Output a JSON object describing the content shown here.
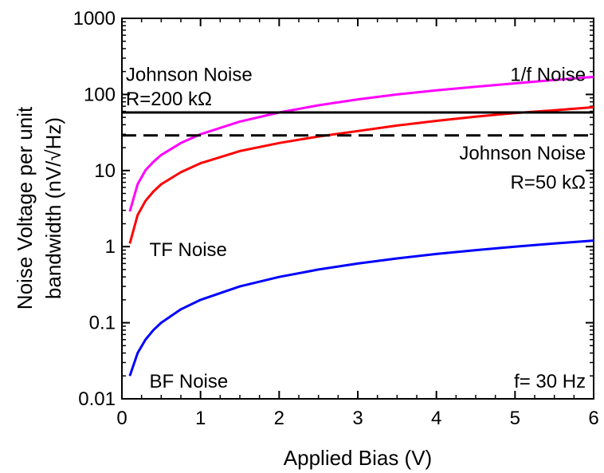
{
  "chart_data": {
    "type": "line",
    "title": "",
    "xlabel": "Applied Bias (V)",
    "ylabel_lines": [
      "Noise Voltage per unit",
      "bandwidth (nV/√Hz)"
    ],
    "xlim": [
      0,
      6
    ],
    "ylim": [
      0.01,
      1000
    ],
    "yscale": "log",
    "grid": false,
    "x_ticks": [
      0,
      1,
      2,
      3,
      4,
      5,
      6
    ],
    "x_tick_labels": [
      "0",
      "1",
      "2",
      "3",
      "4",
      "5",
      "6"
    ],
    "y_ticks": [
      0.01,
      0.1,
      1,
      10,
      100,
      1000
    ],
    "y_tick_labels": [
      "0.01",
      "0.1",
      "1",
      "10",
      "100",
      "1000"
    ],
    "series": [
      {
        "key": "one-over-f",
        "color": "#ff00ff",
        "style": "solid",
        "x": [
          0.1,
          0.2,
          0.3,
          0.4,
          0.5,
          0.75,
          1,
          1.5,
          2,
          2.5,
          3,
          3.5,
          4,
          4.5,
          5,
          5.5,
          6
        ],
        "y": [
          2.9,
          6.6,
          10.1,
          13.0,
          16.0,
          23.0,
          30,
          44,
          58,
          72,
          86,
          100,
          113,
          126,
          140,
          155,
          170
        ]
      },
      {
        "key": "tf",
        "color": "#ff0000",
        "style": "solid",
        "x": [
          0.1,
          0.2,
          0.3,
          0.4,
          0.5,
          0.75,
          1,
          1.5,
          2,
          2.5,
          3,
          3.5,
          4,
          4.5,
          5,
          5.5,
          6
        ],
        "y": [
          1.1,
          2.6,
          4.0,
          5.3,
          6.6,
          9.5,
          12.5,
          18,
          23,
          28,
          33,
          39,
          45,
          51,
          57,
          62,
          68
        ]
      },
      {
        "key": "bf",
        "color": "#0000ff",
        "style": "solid",
        "x": [
          0.1,
          0.2,
          0.3,
          0.4,
          0.5,
          0.75,
          1,
          1.5,
          2,
          2.5,
          3,
          3.5,
          4,
          4.5,
          5,
          5.5,
          6
        ],
        "y": [
          0.02,
          0.04,
          0.06,
          0.08,
          0.1,
          0.15,
          0.2,
          0.3,
          0.4,
          0.5,
          0.6,
          0.7,
          0.8,
          0.9,
          1.0,
          1.1,
          1.2
        ]
      },
      {
        "key": "johnson-200k",
        "color": "#000000",
        "style": "solid",
        "x": [
          0,
          6
        ],
        "y": [
          58,
          58
        ]
      },
      {
        "key": "johnson-50k",
        "color": "#000000",
        "style": "dashed",
        "x": [
          0,
          6
        ],
        "y": [
          29,
          29
        ]
      }
    ],
    "annotations": [
      {
        "key": "label-johnson-200k-1",
        "text": "Johnson Noise",
        "x": 0.05,
        "y": 150,
        "anchor": "start"
      },
      {
        "key": "label-johnson-200k-2",
        "text": "R=200 kΩ",
        "x": 0.05,
        "y": 72,
        "anchor": "start"
      },
      {
        "key": "label-one-over-f",
        "text": "1/f Noise",
        "x": 5.9,
        "y": 150,
        "anchor": "end"
      },
      {
        "key": "label-johnson-50k-1",
        "text": "Johnson Noise",
        "x": 5.9,
        "y": 14,
        "anchor": "end"
      },
      {
        "key": "label-johnson-50k-2",
        "text": "R=50 kΩ",
        "x": 5.9,
        "y": 5.8,
        "anchor": "end"
      },
      {
        "key": "label-tf",
        "text": "TF Noise",
        "x": 0.35,
        "y": 0.75,
        "anchor": "start"
      },
      {
        "key": "label-bf",
        "text": "BF Noise",
        "x": 0.35,
        "y": 0.014,
        "anchor": "start"
      },
      {
        "key": "label-frequency",
        "text": "f= 30 Hz",
        "x": 5.9,
        "y": 0.014,
        "anchor": "end"
      }
    ]
  }
}
